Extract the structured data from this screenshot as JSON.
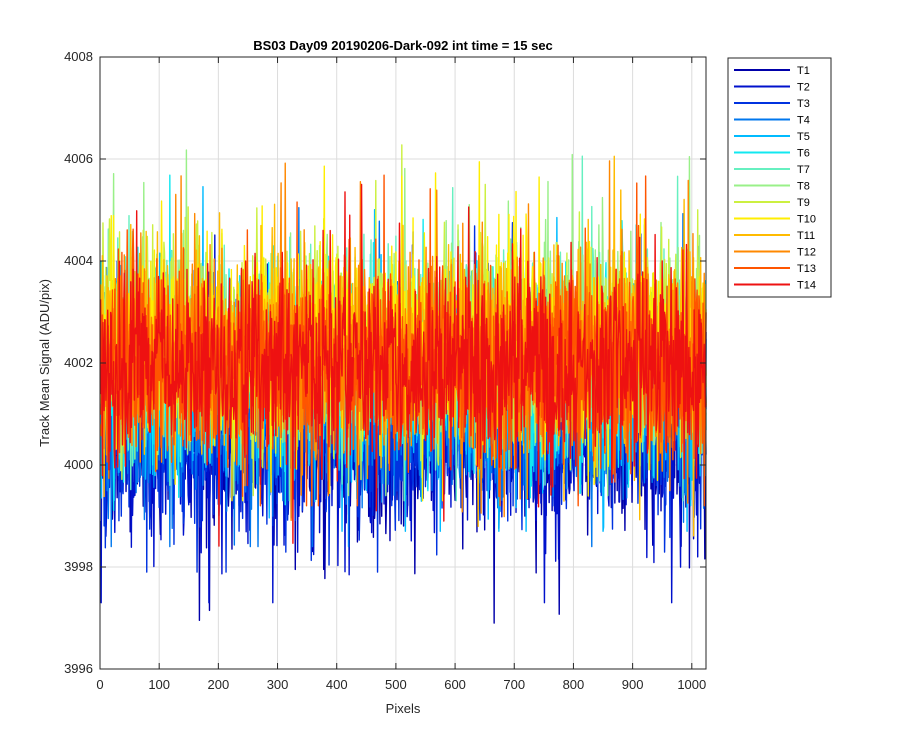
{
  "chart_data": {
    "type": "line",
    "title": "BS03 Day09 20190206-Dark-092 int time = 15 sec",
    "xlabel": "Pixels",
    "ylabel": "Track Mean Signal (ADU/pix)",
    "xlim": [
      0,
      1024
    ],
    "ylim": [
      3996,
      4008
    ],
    "xticks": [
      0,
      100,
      200,
      300,
      400,
      500,
      600,
      700,
      800,
      900,
      1000
    ],
    "yticks": [
      3996,
      3998,
      4000,
      4002,
      4004,
      4006,
      4008
    ],
    "grid": true,
    "legend_position": "outside-top-right",
    "series": [
      {
        "name": "T1",
        "color": "#0000AA",
        "mean": 4000.6,
        "amp": 1.3,
        "min": 3996.9,
        "max": 4004.5
      },
      {
        "name": "T2",
        "color": "#0011CC",
        "mean": 4000.7,
        "amp": 1.3,
        "min": 3997.3,
        "max": 4004.6
      },
      {
        "name": "T3",
        "color": "#0033E0",
        "mean": 4000.9,
        "amp": 1.3,
        "min": 3997.9,
        "max": 4004.8
      },
      {
        "name": "T4",
        "color": "#0077EE",
        "mean": 4001.2,
        "amp": 1.3,
        "min": 3998.4,
        "max": 4005.4
      },
      {
        "name": "T5",
        "color": "#00BBFF",
        "mean": 4001.6,
        "amp": 1.3,
        "min": 3998.7,
        "max": 4006.3
      },
      {
        "name": "T6",
        "color": "#11E8F0",
        "mean": 4002.0,
        "amp": 1.3,
        "min": 3999.0,
        "max": 4006.0
      },
      {
        "name": "T7",
        "color": "#66F0C0",
        "mean": 4002.2,
        "amp": 1.3,
        "min": 3999.3,
        "max": 4006.4
      },
      {
        "name": "T8",
        "color": "#99F088",
        "mean": 4002.4,
        "amp": 1.3,
        "min": 3999.4,
        "max": 4006.8
      },
      {
        "name": "T9",
        "color": "#CCF040",
        "mean": 4002.4,
        "amp": 1.3,
        "min": 3999.4,
        "max": 4006.5
      },
      {
        "name": "T10",
        "color": "#FFEE00",
        "mean": 4002.3,
        "amp": 1.3,
        "min": 3999.3,
        "max": 4007.6
      },
      {
        "name": "T11",
        "color": "#FFBB00",
        "mean": 4002.2,
        "amp": 1.3,
        "min": 3998.6,
        "max": 4006.4
      },
      {
        "name": "T12",
        "color": "#FF8800",
        "mean": 4002.1,
        "amp": 1.3,
        "min": 3998.9,
        "max": 4007.2
      },
      {
        "name": "T13",
        "color": "#FF5500",
        "mean": 4002.0,
        "amp": 1.3,
        "min": 3999.2,
        "max": 4006.3
      },
      {
        "name": "T14",
        "color": "#EE1111",
        "mean": 4001.9,
        "amp": 1.3,
        "min": 3998.1,
        "max": 4006.0
      }
    ],
    "n_points": 1024
  }
}
